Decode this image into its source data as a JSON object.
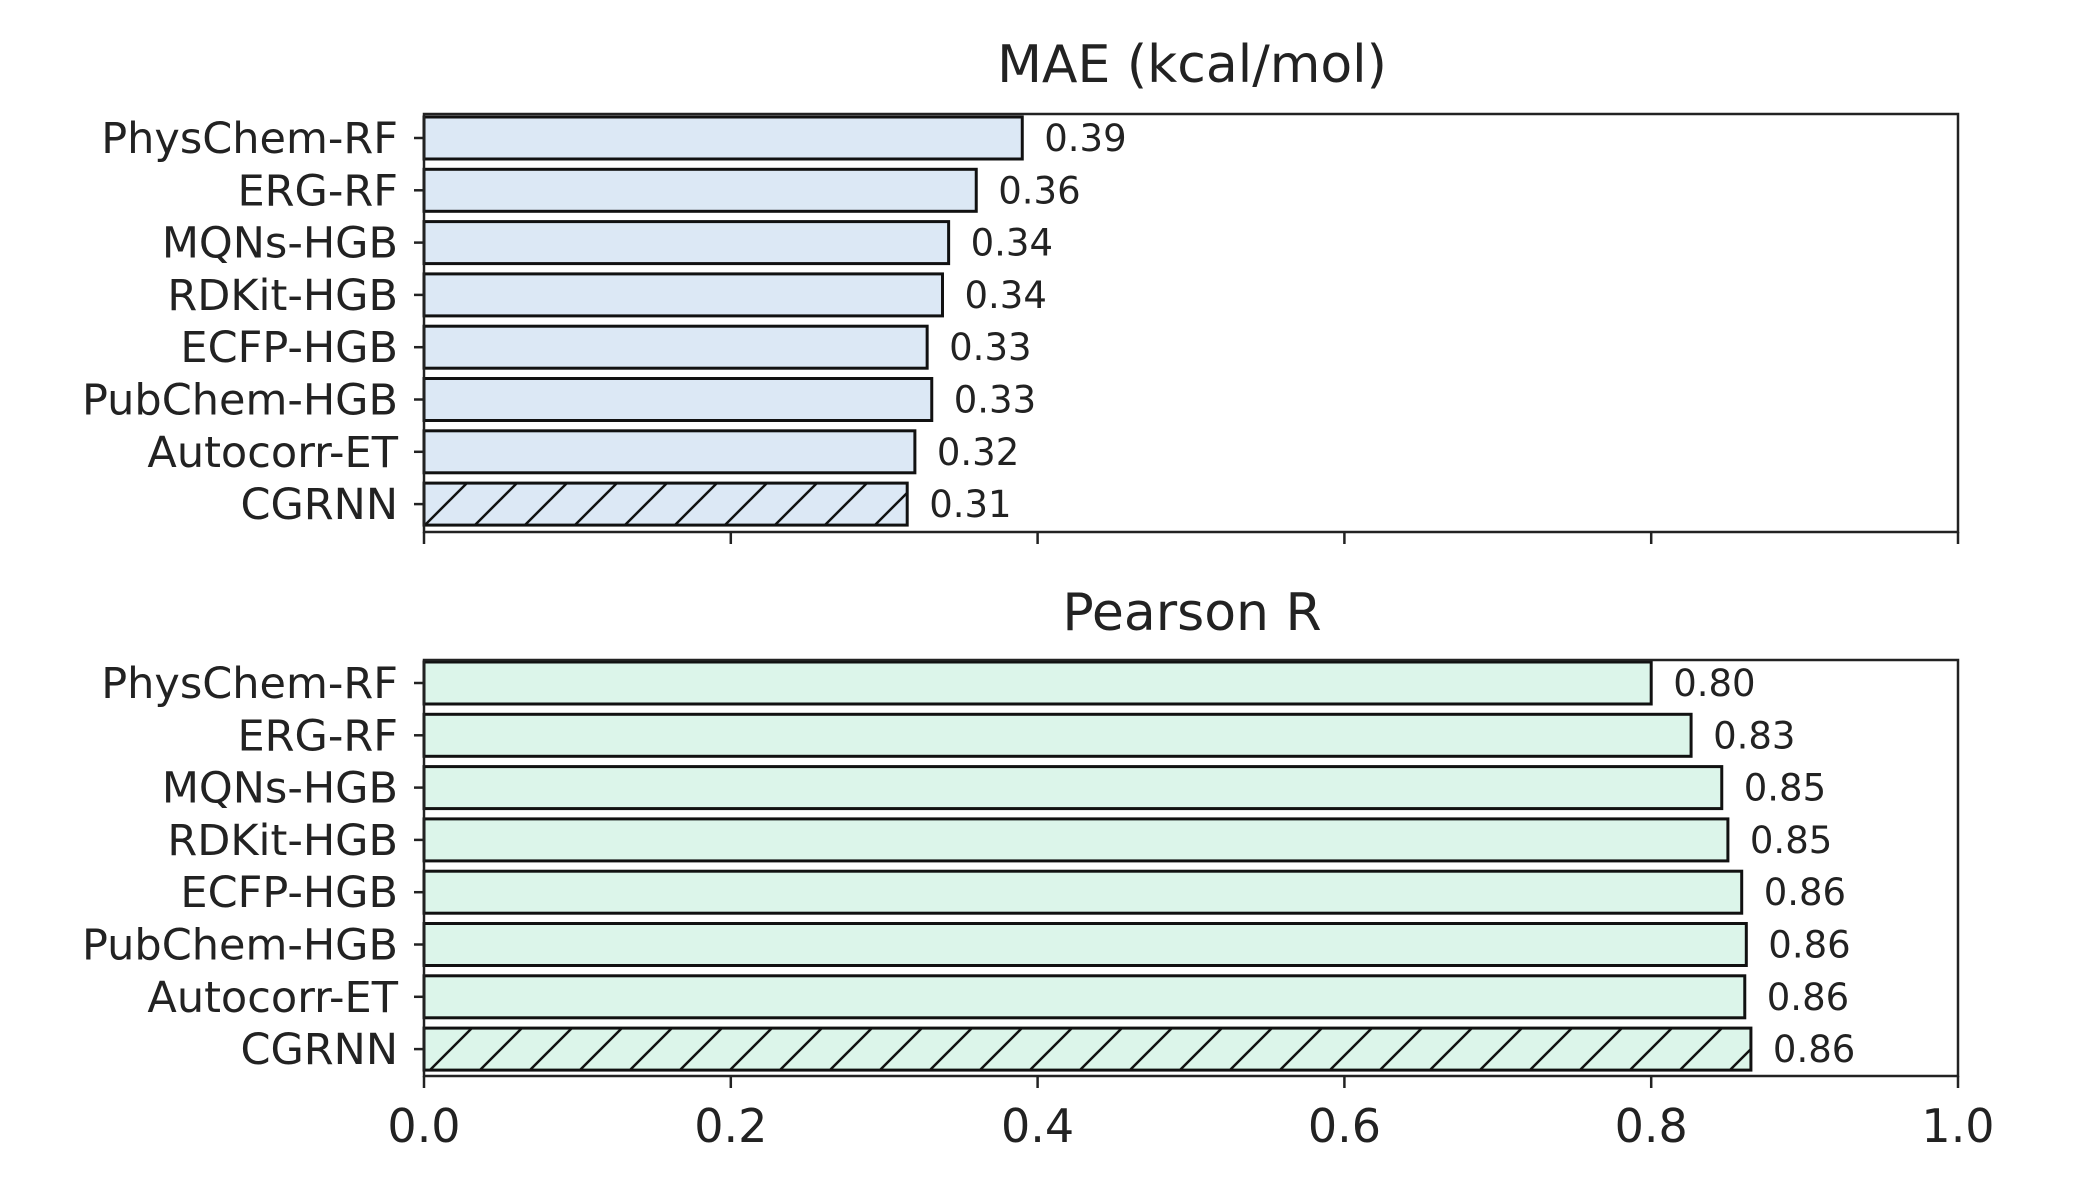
{
  "chart_data": [
    {
      "type": "bar",
      "orientation": "horizontal",
      "title": "MAE (kcal/mol)",
      "categories": [
        "PhysChem-RF",
        "ERG-RF",
        "MQNs-HGB",
        "RDKit-HGB",
        "ECFP-HGB",
        "PubChem-HGB",
        "Autocorr-ET",
        "CGRNN"
      ],
      "values": [
        0.39,
        0.36,
        0.342,
        0.338,
        0.328,
        0.331,
        0.32,
        0.315
      ],
      "data_labels": [
        "0.39",
        "0.36",
        "0.34",
        "0.34",
        "0.33",
        "0.33",
        "0.32",
        "0.31"
      ],
      "hatched": [
        false,
        false,
        false,
        false,
        false,
        false,
        false,
        true
      ],
      "fill_color": "#dce8f5",
      "edge_color": "#111111",
      "xlim": [
        0.0,
        1.0
      ],
      "x_ticks_labeled": false,
      "grid": false
    },
    {
      "type": "bar",
      "orientation": "horizontal",
      "title": "Pearson R",
      "categories": [
        "PhysChem-RF",
        "ERG-RF",
        "MQNs-HGB",
        "RDKit-HGB",
        "ECFP-HGB",
        "PubChem-HGB",
        "Autocorr-ET",
        "CGRNN"
      ],
      "values": [
        0.8,
        0.826,
        0.846,
        0.85,
        0.859,
        0.862,
        0.861,
        0.865
      ],
      "data_labels": [
        "0.80",
        "0.83",
        "0.85",
        "0.85",
        "0.86",
        "0.86",
        "0.86",
        "0.86"
      ],
      "hatched": [
        false,
        false,
        false,
        false,
        false,
        false,
        false,
        true
      ],
      "fill_color": "#dcf5ea",
      "edge_color": "#111111",
      "xlim": [
        0.0,
        1.0
      ],
      "x_ticks": [
        "0.0",
        "0.2",
        "0.4",
        "0.6",
        "0.8",
        "1.0"
      ],
      "x_ticks_labeled": true,
      "grid": false
    }
  ]
}
